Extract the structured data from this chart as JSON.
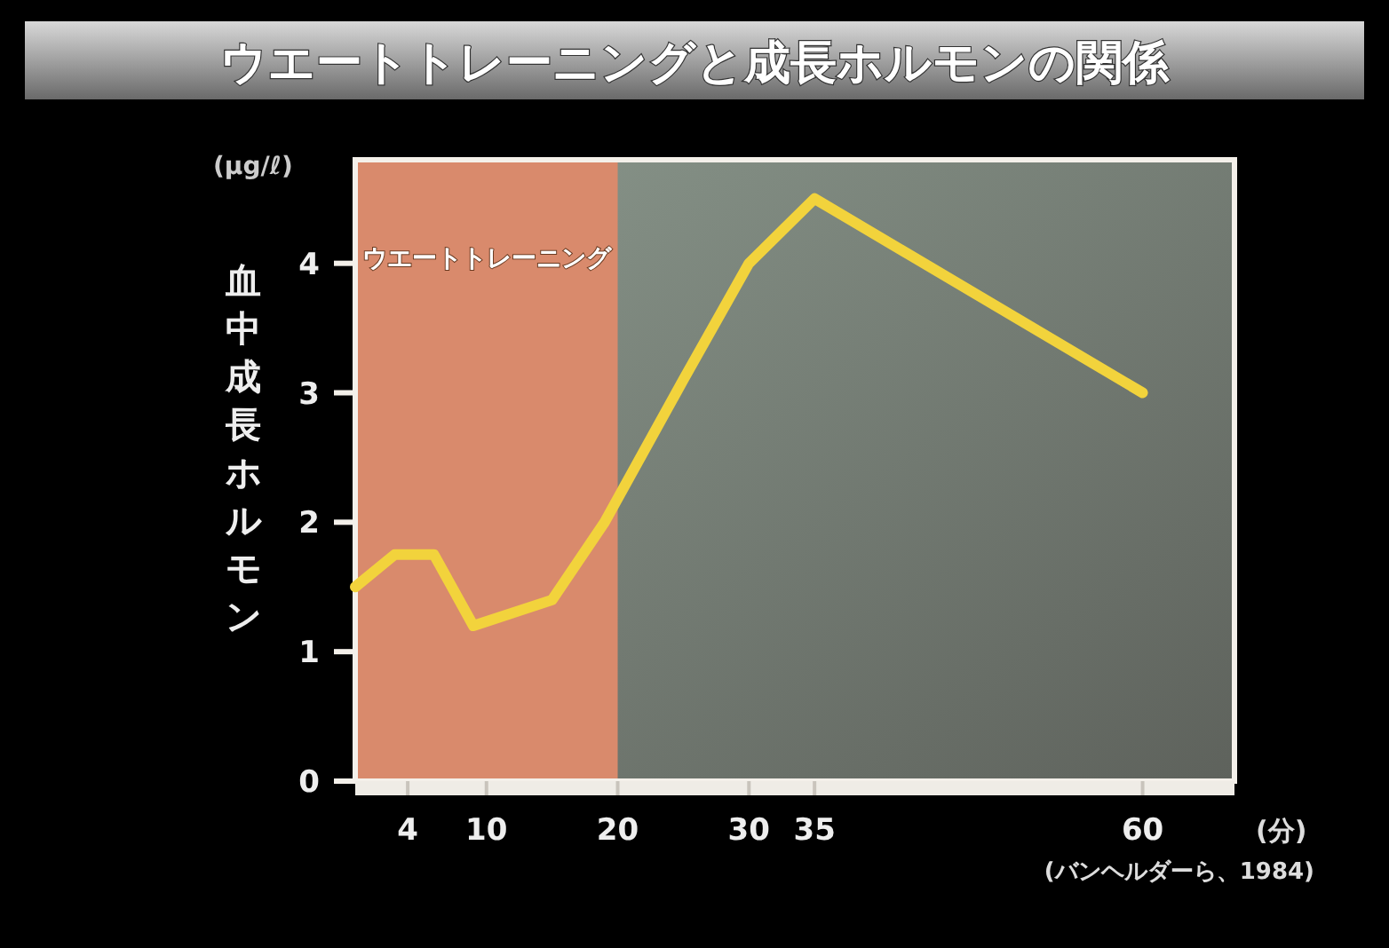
{
  "chart_data": {
    "type": "line",
    "title": "ウエートトレーニングと成長ホルモンの関係",
    "ylabel": "血中成長ホルモン",
    "xlabel": "(分)",
    "annotations": [
      "(μg/ℓ)",
      "(バンヘルダーら、1984)"
    ],
    "x": [
      0,
      3,
      6,
      9,
      15,
      19,
      25,
      30,
      35,
      60
    ],
    "values": [
      1.5,
      1.75,
      1.75,
      1.2,
      1.4,
      2.0,
      3.1,
      4.0,
      4.5,
      3.0
    ],
    "color": "#f2d33c",
    "xlim": [
      0,
      67
    ],
    "ylim": [
      0,
      4.8
    ],
    "xticks": [
      4,
      10,
      20,
      30,
      35,
      60
    ],
    "yticks": [
      0,
      1,
      2,
      3,
      4
    ],
    "bands": [
      {
        "axis": "x",
        "from": 0,
        "to": 20,
        "label": "ウエートトレーニング",
        "color": "#d98a6c"
      }
    ]
  }
}
